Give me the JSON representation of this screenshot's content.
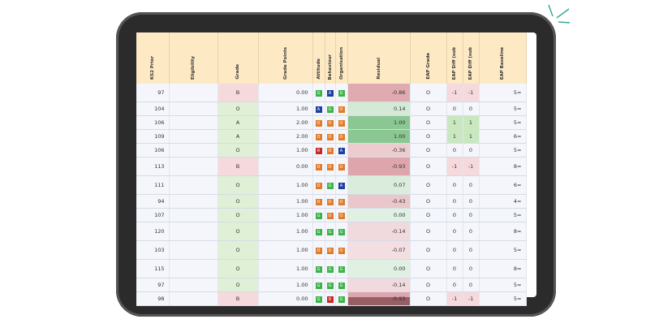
{
  "table": {
    "headers": [
      "KS2 Prior",
      "Eligibility",
      "Grade",
      "Grade Points",
      "Attitude",
      "Behaviour",
      "Organisation",
      "Residual",
      "EAP Grade",
      "EAP Diff (sub",
      "EAP Diff (sub",
      "EAP Baseline"
    ],
    "rows": [
      {
        "ks2": "97",
        "grade": "B",
        "points": "0.00",
        "badges": [
          "G",
          "A",
          "G"
        ],
        "residual": "-0.86",
        "eap": "O",
        "diff": [
          "-1",
          "-1"
        ],
        "baseline": "5="
      },
      {
        "ks2": "104",
        "grade": "O",
        "points": "1.00",
        "badges": [
          "A",
          "G",
          "O"
        ],
        "residual": "0.14",
        "eap": "O",
        "diff": [
          "0",
          "0"
        ],
        "baseline": "5="
      },
      {
        "ks2": "106",
        "grade": "A",
        "points": "2.00",
        "badges": [
          "O",
          "O",
          "O"
        ],
        "residual": "1.00",
        "eap": "O",
        "diff": [
          "1",
          "1"
        ],
        "baseline": "5="
      },
      {
        "ks2": "109",
        "grade": "A",
        "points": "2.00",
        "badges": [
          "O",
          "O",
          "O"
        ],
        "residual": "1.00",
        "eap": "O",
        "diff": [
          "1",
          "1"
        ],
        "baseline": "6="
      },
      {
        "ks2": "106",
        "grade": "O",
        "points": "1.00",
        "badges": [
          "R",
          "O",
          "A"
        ],
        "residual": "-0.36",
        "eap": "O",
        "diff": [
          "0",
          "0"
        ],
        "baseline": "5="
      },
      {
        "ks2": "113",
        "grade": "B",
        "points": "0.00",
        "badges": [
          "O",
          "O",
          "O"
        ],
        "residual": "-0.93",
        "eap": "O",
        "diff": [
          "-1",
          "-1"
        ],
        "baseline": "8="
      },
      {
        "ks2": "111",
        "grade": "O",
        "points": "1.00",
        "badges": [
          "O",
          "G",
          "A"
        ],
        "residual": "0.07",
        "eap": "O",
        "diff": [
          "0",
          "0"
        ],
        "baseline": "6="
      },
      {
        "ks2": "94",
        "grade": "O",
        "points": "1.00",
        "badges": [
          "O",
          "O",
          "O"
        ],
        "residual": "-0.43",
        "eap": "O",
        "diff": [
          "0",
          "0"
        ],
        "baseline": "4="
      },
      {
        "ks2": "107",
        "grade": "O",
        "points": "1.00",
        "badges": [
          "G",
          "O",
          "O"
        ],
        "residual": "0.00",
        "eap": "O",
        "diff": [
          "0",
          "0"
        ],
        "baseline": "5="
      },
      {
        "ks2": "120",
        "grade": "O",
        "points": "1.00",
        "badges": [
          "G",
          "G",
          "G"
        ],
        "residual": "-0.14",
        "eap": "O",
        "diff": [
          "0",
          "0"
        ],
        "baseline": "8="
      },
      {
        "ks2": "103",
        "grade": "O",
        "points": "1.00",
        "badges": [
          "O",
          "O",
          "O"
        ],
        "residual": "-0.07",
        "eap": "O",
        "diff": [
          "0",
          "0"
        ],
        "baseline": "5="
      },
      {
        "ks2": "115",
        "grade": "O",
        "points": "1.00",
        "badges": [
          "G",
          "G",
          "G"
        ],
        "residual": "0.00",
        "eap": "O",
        "diff": [
          "0",
          "0"
        ],
        "baseline": "8="
      },
      {
        "ks2": "97",
        "grade": "O",
        "points": "1.00",
        "badges": [
          "G",
          "G",
          "G"
        ],
        "residual": "-0.14",
        "eap": "O",
        "diff": [
          "0",
          "0"
        ],
        "baseline": "5="
      },
      {
        "ks2": "98",
        "grade": "B",
        "points": "0.00",
        "badges": [
          "G",
          "R",
          "G"
        ],
        "residual": "-0.93",
        "eap": "O",
        "diff": [
          "-1",
          "-1"
        ],
        "baseline": "5="
      }
    ]
  }
}
